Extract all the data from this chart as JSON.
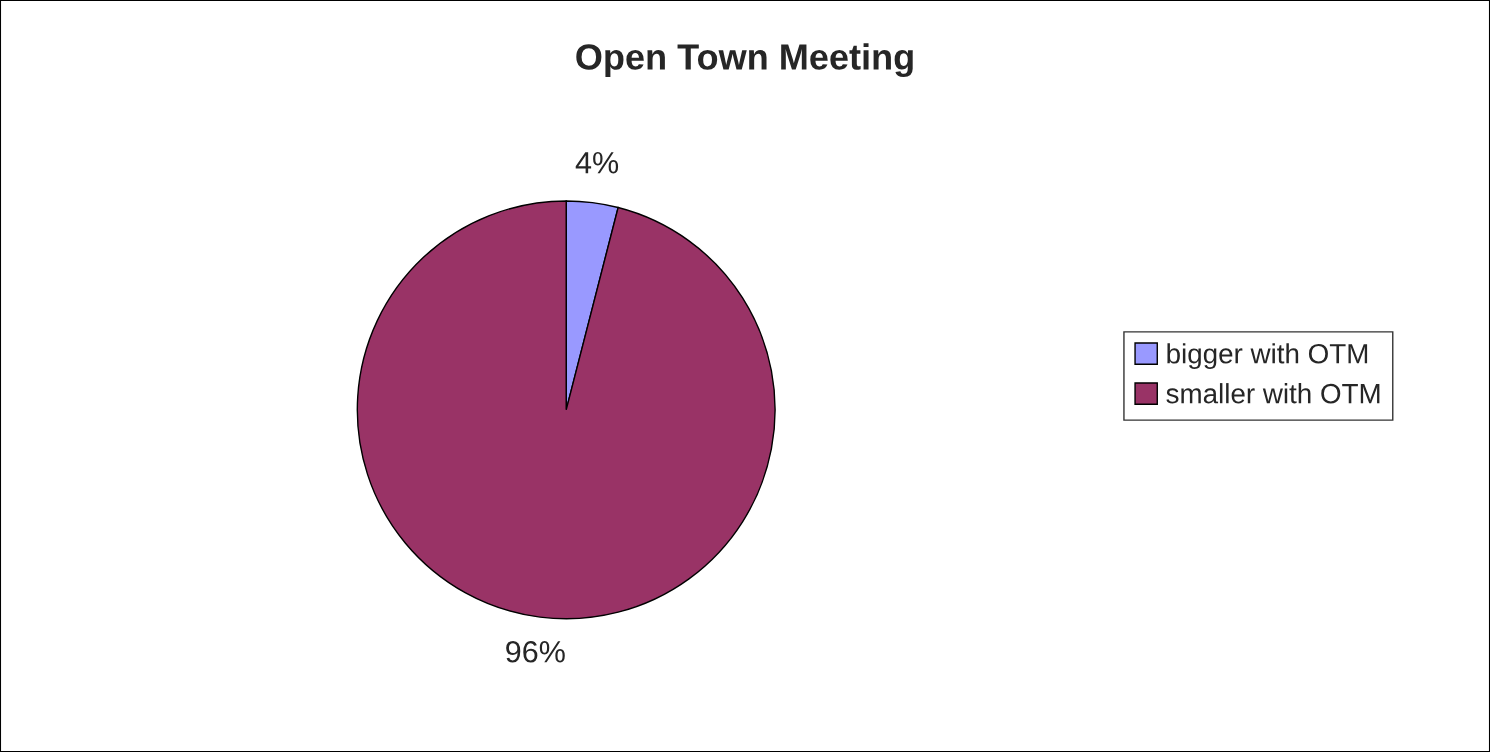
{
  "chart_data": {
    "type": "pie",
    "title": "Open Town Meeting",
    "categories": [
      "bigger with OTM",
      "smaller with OTM"
    ],
    "values": [
      4,
      96
    ],
    "colors": [
      "#9999ff",
      "#993366"
    ],
    "value_labels": [
      "4%",
      "96%"
    ],
    "legend": "right"
  }
}
